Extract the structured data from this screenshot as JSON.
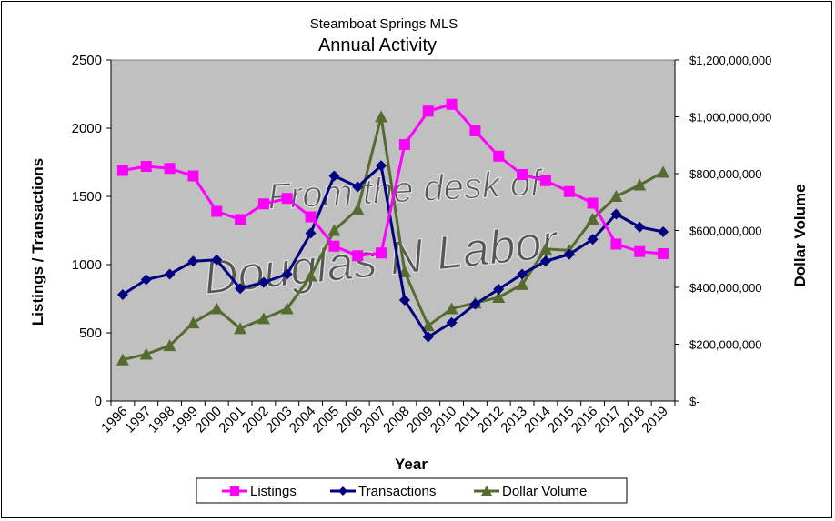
{
  "chart_data": {
    "type": "line",
    "subtitle": "Steamboat Springs MLS",
    "title": "Annual Activity",
    "xlabel": "Year",
    "ylabel": "Listings / Transactions",
    "ylabel_right": "Dollar Volume",
    "watermark": [
      "From the desk of",
      "Douglas N Labor"
    ],
    "categories": [
      "1996",
      "1997",
      "1998",
      "1999",
      "2000",
      "2001",
      "2002",
      "2003",
      "2004",
      "2005",
      "2006",
      "2007",
      "2008",
      "2009",
      "2010",
      "2011",
      "2012",
      "2013",
      "2014",
      "2015",
      "2016",
      "2017",
      "2018",
      "2019"
    ],
    "ylim": [
      0,
      2500
    ],
    "yticks": [
      "0",
      "500",
      "1000",
      "1500",
      "2000",
      "2500"
    ],
    "y2lim": [
      0,
      1200000000
    ],
    "y2ticks": [
      "$-",
      "$200,000,000",
      "$400,000,000",
      "$600,000,000",
      "$800,000,000",
      "$1,000,000,000",
      "$1,200,000,000"
    ],
    "series": [
      {
        "name": "Listings",
        "axis": "left",
        "color": "#ff00ff",
        "marker": "square",
        "values": [
          1690,
          1720,
          1705,
          1650,
          1390,
          1330,
          1445,
          1485,
          1350,
          1135,
          1065,
          1085,
          1880,
          2125,
          2175,
          1980,
          1795,
          1660,
          1615,
          1535,
          1450,
          1150,
          1095,
          1080
        ]
      },
      {
        "name": "Transactions",
        "axis": "left",
        "color": "#000080",
        "marker": "diamond",
        "values": [
          780,
          890,
          930,
          1025,
          1035,
          825,
          870,
          930,
          1230,
          1650,
          1570,
          1725,
          740,
          470,
          575,
          710,
          820,
          930,
          1025,
          1075,
          1185,
          1370,
          1275,
          1240
        ]
      },
      {
        "name": "Dollar Volume",
        "axis": "right",
        "color": "#556b2f",
        "marker": "triangle",
        "values": [
          145000000,
          165000000,
          195000000,
          275000000,
          325000000,
          255000000,
          290000000,
          325000000,
          440000000,
          600000000,
          675000000,
          1000000000,
          455000000,
          265000000,
          325000000,
          345000000,
          365000000,
          410000000,
          535000000,
          530000000,
          640000000,
          720000000,
          760000000,
          805000000
        ]
      }
    ],
    "legend": [
      "Listings",
      "Transactions",
      "Dollar Volume"
    ],
    "plot_background": "#c0c0c0",
    "legend_position": "bottom"
  }
}
